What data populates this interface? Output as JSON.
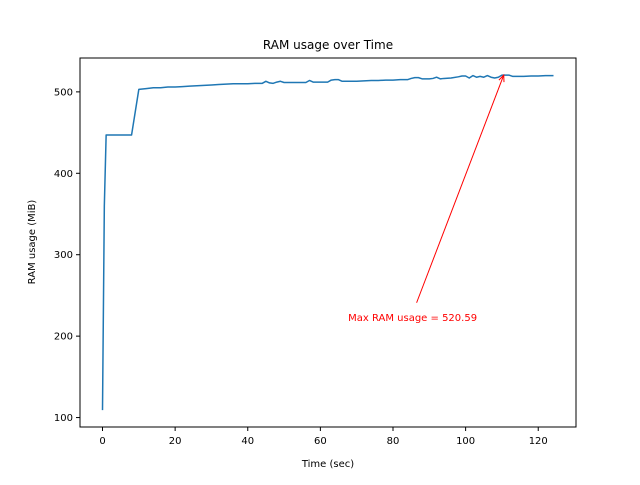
{
  "chart_data": {
    "type": "line",
    "title": "RAM usage over Time",
    "xlabel": "Time (sec)",
    "ylabel": "RAM usage (MiB)",
    "xlim": [
      -6.2,
      130.4
    ],
    "ylim": [
      88.4,
      541.6
    ],
    "xticks": [
      0,
      20,
      40,
      60,
      80,
      100,
      120
    ],
    "yticks": [
      100,
      200,
      300,
      400,
      500
    ],
    "grid": false,
    "series": [
      {
        "color": "#1f77b4",
        "x": [
          0,
          0.5,
          1,
          2,
          4,
          6,
          8,
          10,
          12,
          14,
          16,
          18,
          20,
          22,
          24,
          26,
          28,
          30,
          32,
          34,
          36,
          38,
          40,
          42,
          44,
          45,
          46,
          47,
          48,
          49,
          50,
          52,
          54,
          56,
          57,
          58,
          60,
          62,
          63,
          64,
          65,
          66,
          68,
          70,
          72,
          74,
          76,
          78,
          80,
          82,
          84,
          85,
          86,
          87,
          88,
          90,
          91,
          92,
          93,
          94,
          96,
          98,
          99,
          100,
          101,
          102,
          103,
          104,
          105,
          106,
          107,
          108,
          109,
          110,
          111,
          112,
          113,
          114,
          116,
          118,
          120,
          122,
          124
        ],
        "y": [
          110,
          360,
          447,
          447,
          447,
          447,
          447,
          503,
          504,
          505,
          505,
          506,
          506,
          506.5,
          507,
          507.5,
          508,
          508.5,
          509,
          509.5,
          510,
          510,
          510,
          510.5,
          510.5,
          513,
          511,
          510.5,
          512,
          513,
          511.5,
          511.5,
          511.5,
          511.5,
          514,
          512,
          512,
          512,
          514.5,
          515,
          515,
          513,
          513,
          513,
          513.5,
          514,
          514,
          514.5,
          514.5,
          515,
          515,
          516.5,
          517.5,
          517.5,
          516,
          516,
          516.5,
          518,
          516,
          516.5,
          517,
          518.5,
          519.5,
          519.5,
          517,
          520,
          518,
          519,
          518,
          520,
          518,
          517,
          518,
          520.6,
          520.6,
          520.5,
          519,
          519,
          519,
          519.5,
          519.5,
          520,
          520
        ]
      }
    ],
    "annotation": {
      "text": "Max RAM usage = 520.59",
      "color": "#ff0000",
      "point": [
        110.5,
        520.59
      ],
      "text_anchor_point": [
        86.5,
        241
      ]
    }
  }
}
